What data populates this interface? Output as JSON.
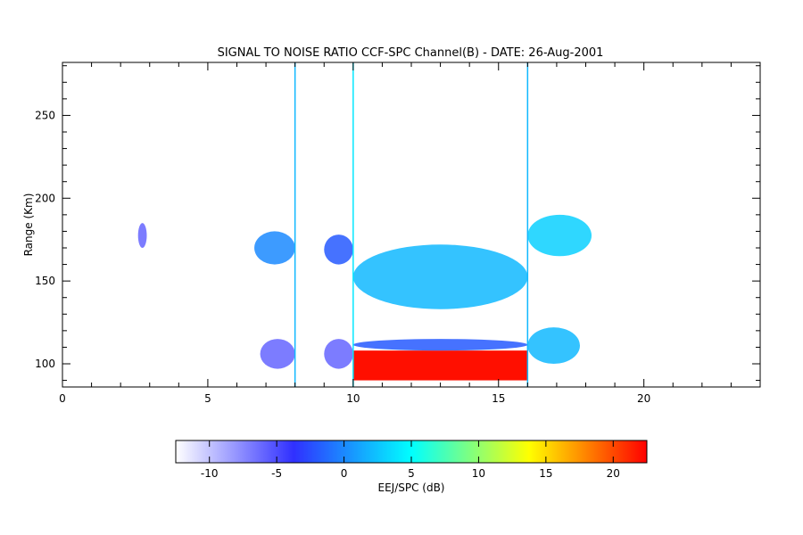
{
  "chart_data": {
    "type": "heatmap",
    "title": "SIGNAL TO NOISE RATIO CCF-SPC Channel(B) - DATE: 26-Aug-2001",
    "xlabel": "",
    "ylabel": "Range (Km)",
    "xlim": [
      0,
      24
    ],
    "ylim": [
      86,
      282
    ],
    "x_ticks": [
      0,
      5,
      10,
      15,
      20
    ],
    "y_ticks": [
      100,
      150,
      200,
      250
    ],
    "grid": false,
    "colorbar": {
      "label": "EEJ/SPC (dB)",
      "range": [
        -12.5,
        22.5
      ],
      "ticks": [
        -10,
        -5,
        0,
        5,
        10,
        15,
        20
      ],
      "colors": [
        "#ffffff",
        "#3030ff",
        "#00ffff",
        "#ffff00",
        "#ff0000"
      ]
    },
    "features": [
      {
        "label": "strong echo",
        "x": [
          10.0,
          16.0
        ],
        "y": [
          90,
          108
        ],
        "snr_db": 22
      },
      {
        "label": "upper echo band",
        "x": [
          10.0,
          16.0
        ],
        "y": [
          133,
          172
        ],
        "snr_db": 2
      },
      {
        "label": "lower echo band",
        "x": [
          10.0,
          16.0
        ],
        "y": [
          108,
          115
        ],
        "snr_db": -2
      },
      {
        "label": "upper patch",
        "x": [
          16.0,
          18.2
        ],
        "y": [
          165,
          190
        ],
        "snr_db": 3
      },
      {
        "label": "lower patch",
        "x": [
          16.0,
          17.8
        ],
        "y": [
          100,
          122
        ],
        "snr_db": 2
      },
      {
        "label": "upper patch",
        "x": [
          6.6,
          8.0
        ],
        "y": [
          160,
          180
        ],
        "snr_db": 0
      },
      {
        "label": "lower patch",
        "x": [
          6.8,
          8.0
        ],
        "y": [
          97,
          115
        ],
        "snr_db": -6
      },
      {
        "label": "upper patch",
        "x": [
          9.0,
          10.0
        ],
        "y": [
          160,
          178
        ],
        "snr_db": -2
      },
      {
        "label": "lower patch",
        "x": [
          9.0,
          10.0
        ],
        "y": [
          97,
          115
        ],
        "snr_db": -6
      },
      {
        "label": "patch",
        "x": [
          2.6,
          2.9
        ],
        "y": [
          170,
          185
        ],
        "snr_db": -6
      }
    ],
    "vertical_lines": [
      {
        "x": 8.0,
        "snr_db": 2
      },
      {
        "x": 16.0,
        "snr_db": 2
      },
      {
        "x": 10.0,
        "snr_db": 4
      }
    ]
  }
}
